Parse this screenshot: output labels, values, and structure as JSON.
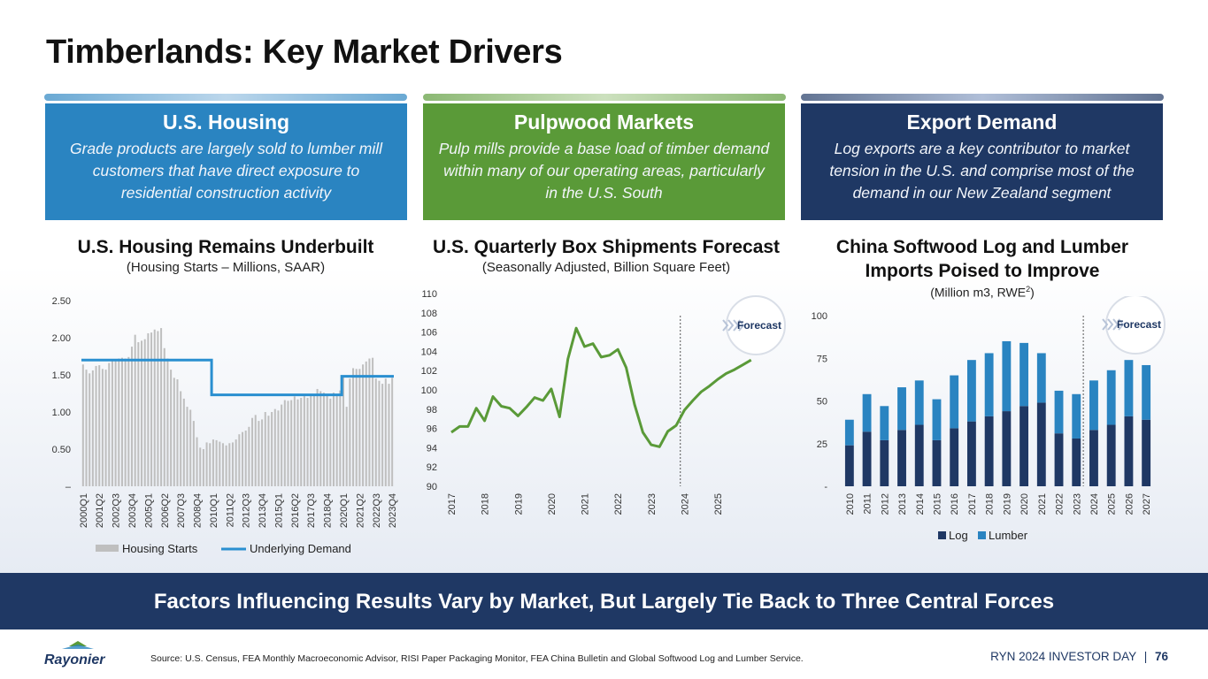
{
  "title": "Timberlands: Key Market Drivers",
  "cards": [
    {
      "heading": "U.S. Housing",
      "text": "Grade products are largely sold to lumber mill customers that have direct exposure to residential construction activity",
      "color": "#2a84c1"
    },
    {
      "heading": "Pulpwood Markets",
      "text": "Pulp mills provide a base load of timber demand within many of our operating areas, particularly in the U.S. South",
      "color": "#5a9a38"
    },
    {
      "heading": "Export Demand",
      "text": "Log exports are a key contributor to market tension in the U.S. and comprise most of the demand in our New Zealand segment",
      "color": "#1f3864"
    }
  ],
  "charts_text": {
    "housing_title": "U.S. Housing Remains Underbuilt",
    "housing_sub": "(Housing Starts – Millions, SAAR)",
    "box_title": "U.S. Quarterly Box Shipments Forecast",
    "box_sub": "(Seasonally Adjusted, Billion Square Feet)",
    "china_title_1": "China Softwood Log and Lumber",
    "china_title_2": "Imports Poised to Improve",
    "china_sub": "(Million m3, RWE",
    "china_sub_sup": "2",
    "china_sub_end": ")",
    "forecast_label": "Forecast"
  },
  "chart_data": [
    {
      "type": "bar",
      "title": "U.S. Housing Remains Underbuilt",
      "subtitle": "(Housing Starts – Millions, SAAR)",
      "y_ticks": [
        "–",
        "0.50",
        "1.00",
        "1.50",
        "2.00",
        "2.50"
      ],
      "ylim": [
        0,
        2.5
      ],
      "x_tick_labels": [
        "2000Q1",
        "2001Q2",
        "2002Q3",
        "2003Q4",
        "2005Q1",
        "2006Q2",
        "2007Q3",
        "2008Q4",
        "2010Q1",
        "2011Q2",
        "2012Q3",
        "2013Q4",
        "2015Q1",
        "2016Q2",
        "2017Q3",
        "2018Q4",
        "2020Q1",
        "2021Q2",
        "2022Q3",
        "2023Q4"
      ],
      "series": [
        {
          "name": "Housing Starts",
          "kind": "bar",
          "color": "#bfbfbf",
          "values": [
            1.64,
            1.57,
            1.52,
            1.56,
            1.62,
            1.63,
            1.58,
            1.57,
            1.66,
            1.7,
            1.7,
            1.72,
            1.73,
            1.72,
            1.74,
            1.88,
            2.04,
            1.94,
            1.96,
            1.98,
            2.06,
            2.07,
            2.11,
            2.09,
            2.13,
            1.86,
            1.72,
            1.57,
            1.46,
            1.44,
            1.28,
            1.18,
            1.07,
            1.03,
            0.88,
            0.66,
            0.52,
            0.5,
            0.59,
            0.58,
            0.63,
            0.62,
            0.6,
            0.58,
            0.55,
            0.58,
            0.59,
            0.63,
            0.7,
            0.73,
            0.75,
            0.8,
            0.92,
            0.96,
            0.88,
            0.9,
            1.0,
            0.95,
            1.0,
            1.04,
            1.02,
            1.1,
            1.16,
            1.15,
            1.16,
            1.21,
            1.17,
            1.19,
            1.24,
            1.19,
            1.24,
            1.22,
            1.31,
            1.28,
            1.26,
            1.23,
            1.18,
            1.26,
            1.23,
            1.29,
            1.48,
            1.07,
            1.45,
            1.59,
            1.58,
            1.58,
            1.64,
            1.68,
            1.72,
            1.73,
            1.45,
            1.42,
            1.38,
            1.45,
            1.38,
            1.46
          ]
        },
        {
          "name": "Underlying Demand",
          "kind": "step-line",
          "color": "#2a8fd0",
          "segments": [
            {
              "from": "2000Q1",
              "to": "2009Q4",
              "value": 1.7
            },
            {
              "from": "2010Q1",
              "to": "2019Q4",
              "value": 1.23
            },
            {
              "from": "2020Q1",
              "to": "2023Q4",
              "value": 1.48
            }
          ]
        }
      ],
      "legend": "bottom"
    },
    {
      "type": "line",
      "title": "U.S. Quarterly Box Shipments Forecast",
      "subtitle": "(Seasonally Adjusted, Billion Square Feet)",
      "ylim": [
        90,
        110
      ],
      "y_ticks": [
        90,
        92,
        94,
        96,
        98,
        100,
        102,
        104,
        106,
        108,
        110
      ],
      "x_tick_labels": [
        "2017",
        "2018",
        "2019",
        "2020",
        "2021",
        "2022",
        "2023",
        "2024",
        "2025"
      ],
      "forecast_start": "2024",
      "series": [
        {
          "name": "",
          "color": "#5a9a38",
          "values": [
            95.6,
            96.2,
            96.2,
            98.1,
            96.8,
            99.3,
            98.3,
            98.1,
            97.3,
            98.2,
            99.2,
            98.9,
            100.1,
            97.2,
            103.2,
            106.4,
            104.5,
            104.8,
            103.4,
            103.6,
            104.2,
            102.3,
            98.5,
            95.6,
            94.3,
            94.1,
            95.7,
            96.3,
            97.9,
            98.9,
            99.8,
            100.4,
            101.1,
            101.7,
            102.1,
            102.6,
            103.1
          ]
        }
      ]
    },
    {
      "type": "bar",
      "stacked": true,
      "title": "China Softwood Log and Lumber Imports Poised to Improve",
      "subtitle": "(Million m3, RWE2)",
      "ylim": [
        0,
        100
      ],
      "y_ticks": [
        "-",
        "25",
        "50",
        "75",
        "100"
      ],
      "categories": [
        "2010",
        "2011",
        "2012",
        "2013",
        "2014",
        "2015",
        "2016",
        "2017",
        "2018",
        "2019",
        "2020",
        "2021",
        "2022",
        "2023",
        "2024",
        "2025",
        "2026",
        "2027"
      ],
      "forecast_start": "2024",
      "series": [
        {
          "name": "Log",
          "color": "#1f3864",
          "values": [
            24,
            32,
            27,
            33,
            36,
            27,
            34,
            38,
            41,
            44,
            47,
            49,
            31,
            28,
            33,
            36,
            41,
            39
          ]
        },
        {
          "name": "Lumber",
          "color": "#2a84c1",
          "values": [
            15,
            22,
            20,
            25,
            26,
            24,
            31,
            36,
            37,
            41,
            37,
            29,
            25,
            26,
            29,
            32,
            33,
            32
          ]
        }
      ],
      "legend": "bottom"
    }
  ],
  "banner": "Factors Influencing Results Vary by Market, But Largely Tie Back to Three Central Forces",
  "footer": {
    "source": "Source: U.S. Census, FEA Monthly Macroeconomic Advisor, RISI Paper Packaging Monitor, FEA China Bulletin and Global Softwood Log and Lumber Service.",
    "event": "RYN 2024 INVESTOR DAY",
    "separator": "|",
    "page": "76",
    "logo_text": "Rayonier"
  }
}
